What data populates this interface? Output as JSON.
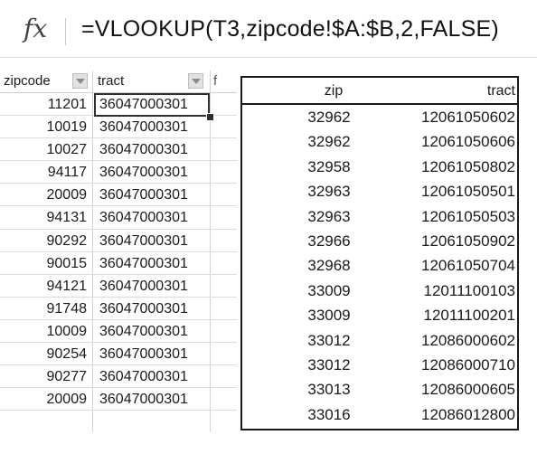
{
  "formula_bar": {
    "fx_label": "fx",
    "formula": "=VLOOKUP(T3,zipcode!$A:$B,2,FALSE)"
  },
  "sheet": {
    "headers": {
      "zipcode": "zipcode",
      "tract": "tract",
      "next": "f"
    },
    "rows": [
      {
        "zip": "11201",
        "tract": "36047000301"
      },
      {
        "zip": "10019",
        "tract": "36047000301"
      },
      {
        "zip": "10027",
        "tract": "36047000301"
      },
      {
        "zip": "94117",
        "tract": "36047000301"
      },
      {
        "zip": "20009",
        "tract": "36047000301"
      },
      {
        "zip": "94131",
        "tract": "36047000301"
      },
      {
        "zip": "90292",
        "tract": "36047000301"
      },
      {
        "zip": "90015",
        "tract": "36047000301"
      },
      {
        "zip": "94121",
        "tract": "36047000301"
      },
      {
        "zip": "91748",
        "tract": "36047000301"
      },
      {
        "zip": "10009",
        "tract": "36047000301"
      },
      {
        "zip": "90254",
        "tract": "36047000301"
      },
      {
        "zip": "90277",
        "tract": "36047000301"
      },
      {
        "zip": "20009",
        "tract": "36047000301"
      }
    ]
  },
  "lookup_table": {
    "headers": {
      "zip": "zip",
      "tract": "tract"
    },
    "rows": [
      {
        "zip": "32962",
        "tract": "12061050602"
      },
      {
        "zip": "32962",
        "tract": "12061050606"
      },
      {
        "zip": "32958",
        "tract": "12061050802"
      },
      {
        "zip": "32963",
        "tract": "12061050501"
      },
      {
        "zip": "32963",
        "tract": "12061050503"
      },
      {
        "zip": "32966",
        "tract": "12061050902"
      },
      {
        "zip": "32968",
        "tract": "12061050704"
      },
      {
        "zip": "33009",
        "tract": "12011100103"
      },
      {
        "zip": "33009",
        "tract": "12011100201"
      },
      {
        "zip": "33012",
        "tract": "12086000602"
      },
      {
        "zip": "33012",
        "tract": "12086000710"
      },
      {
        "zip": "33013",
        "tract": "12086000605"
      },
      {
        "zip": "33016",
        "tract": "12086012800"
      }
    ]
  }
}
